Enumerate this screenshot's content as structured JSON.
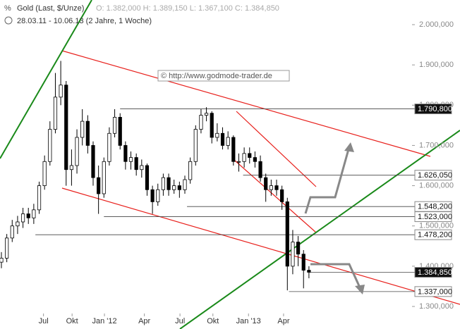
{
  "chart_data": {
    "type": "candlestick",
    "title": "Gold (Last, $/Unze)",
    "quote": "O: 1.382,000 H: 1.389,150 L: 1.367,100 C: 1.384,850",
    "subtitle": "28.03.11 - 10.06.13 (2 Jahre, 1 Woche)",
    "watermark": "© http://www.godmode-trader.de",
    "open": [
      1410,
      1420,
      1470,
      1500,
      1510,
      1530,
      1520,
      1540,
      1600,
      1660,
      1740,
      1820,
      1850,
      1640,
      1650,
      1720,
      1760,
      1700,
      1620,
      1580,
      1660,
      1730,
      1770,
      1700,
      1660,
      1670,
      1640,
      1650,
      1590,
      1560,
      1590,
      1620,
      1590,
      1600,
      1590,
      1615,
      1660,
      1740,
      1775,
      1780,
      1720,
      1730,
      1700,
      1720,
      1660,
      1660,
      1680,
      1670,
      1660,
      1620,
      1590,
      1600,
      1590,
      1560,
      1400,
      1460,
      1430,
      1390
    ],
    "high": [
      1435,
      1480,
      1515,
      1525,
      1545,
      1545,
      1555,
      1610,
      1675,
      1760,
      1880,
      1910,
      1860,
      1690,
      1740,
      1790,
      1775,
      1710,
      1650,
      1670,
      1745,
      1790,
      1780,
      1710,
      1685,
      1680,
      1665,
      1655,
      1600,
      1605,
      1630,
      1630,
      1615,
      1610,
      1625,
      1670,
      1750,
      1790,
      1795,
      1785,
      1755,
      1745,
      1735,
      1725,
      1680,
      1695,
      1695,
      1685,
      1675,
      1630,
      1615,
      1615,
      1600,
      1570,
      1490,
      1475,
      1440,
      1400
    ],
    "low": [
      1395,
      1410,
      1460,
      1480,
      1495,
      1505,
      1505,
      1530,
      1590,
      1650,
      1730,
      1800,
      1600,
      1600,
      1630,
      1700,
      1680,
      1600,
      1530,
      1570,
      1650,
      1720,
      1690,
      1640,
      1640,
      1625,
      1620,
      1575,
      1530,
      1550,
      1575,
      1575,
      1580,
      1570,
      1580,
      1605,
      1650,
      1730,
      1760,
      1705,
      1710,
      1690,
      1690,
      1650,
      1635,
      1645,
      1655,
      1645,
      1610,
      1560,
      1575,
      1575,
      1540,
      1340,
      1380,
      1400,
      1345,
      1370
    ],
    "close": [
      1420,
      1470,
      1500,
      1510,
      1530,
      1520,
      1540,
      1600,
      1660,
      1740,
      1820,
      1850,
      1640,
      1650,
      1720,
      1760,
      1700,
      1620,
      1580,
      1660,
      1730,
      1770,
      1700,
      1660,
      1670,
      1640,
      1650,
      1590,
      1560,
      1590,
      1620,
      1590,
      1600,
      1590,
      1615,
      1660,
      1740,
      1775,
      1780,
      1720,
      1730,
      1700,
      1720,
      1660,
      1660,
      1680,
      1670,
      1660,
      1620,
      1590,
      1600,
      1590,
      1560,
      1400,
      1460,
      1430,
      1390,
      1385
    ],
    "xlim": [
      -0.26,
      85
    ],
    "xticks": [
      {
        "value": 7.8,
        "label": "Jul"
      },
      {
        "value": 13.1,
        "label": "Okt"
      },
      {
        "value": 19.1,
        "label": "Jan '12"
      },
      {
        "value": 26.5,
        "label": "Apr"
      },
      {
        "value": 33.1,
        "label": "Jul"
      },
      {
        "value": 39.2,
        "label": "Okt"
      },
      {
        "value": 45.8,
        "label": "Jan '13"
      },
      {
        "value": 52.3,
        "label": "Apr"
      }
    ],
    "ylim": [
      1244,
      2061.25
    ],
    "yticks": [
      {
        "value": 1300,
        "label": "1.300,000"
      },
      {
        "value": 1400,
        "label": "1.400,000"
      },
      {
        "value": 1500,
        "label": "1.500,000"
      },
      {
        "value": 1600,
        "label": "1.600,000"
      },
      {
        "value": 1700,
        "label": "1.700,000"
      },
      {
        "value": 1800,
        "label": "1.800,000"
      },
      {
        "value": 1900,
        "label": "1.900,000"
      },
      {
        "value": 2000,
        "label": "2.000,000"
      }
    ],
    "levels": [
      {
        "value": 1790.8,
        "label": "1.790,800",
        "start": 22,
        "highlight": true
      },
      {
        "value": 1626.05,
        "label": "1.626,050",
        "start": 44.8,
        "highlight": false
      },
      {
        "value": 1548.2,
        "label": "1.548,200",
        "start": 34.4,
        "highlight": false
      },
      {
        "value": 1523,
        "label": "1.523,000",
        "start": 19,
        "highlight": false
      },
      {
        "value": 1478.2,
        "label": "1.478,200",
        "start": 6.3,
        "highlight": false
      },
      {
        "value": 1384.85,
        "label": "1.384,850",
        "start": 57,
        "highlight": true
      },
      {
        "value": 1337,
        "label": "1.337,000",
        "start": 53.3,
        "highlight": false
      }
    ],
    "up_color": "#ffffff",
    "down_color": "#000000"
  }
}
